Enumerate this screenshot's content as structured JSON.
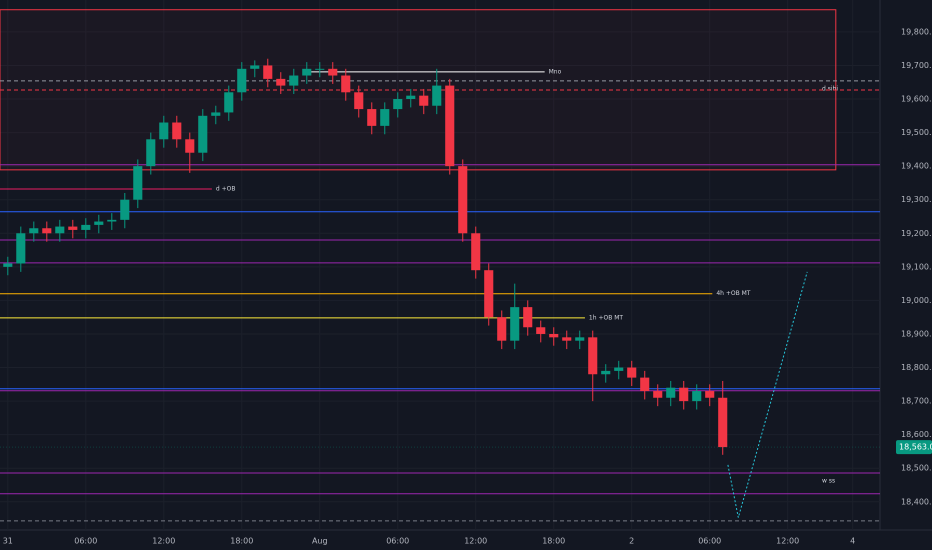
{
  "chart_data": {
    "type": "candlestick",
    "x": [
      0,
      1,
      2,
      3,
      4,
      5,
      6,
      7,
      8,
      9,
      10,
      11,
      12,
      13,
      14,
      15,
      16,
      17,
      18,
      19,
      20,
      21,
      22,
      23,
      24,
      25,
      26,
      27,
      28,
      29,
      30,
      31,
      32,
      33,
      34,
      35,
      36,
      37,
      38,
      39,
      40,
      41,
      42,
      43,
      44,
      45,
      46,
      47,
      48,
      49,
      50,
      51,
      52,
      53,
      54,
      55
    ],
    "open": [
      19100,
      19110,
      19200,
      19215,
      19200,
      19220,
      19210,
      19225,
      19235,
      19240,
      19300,
      19400,
      19480,
      19530,
      19480,
      19440,
      19550,
      19560,
      19620,
      19690,
      19700,
      19660,
      19640,
      19670,
      19690,
      19690,
      19670,
      19620,
      19570,
      19520,
      19570,
      19600,
      19610,
      19580,
      19640,
      19400,
      19200,
      19090,
      18950,
      18880,
      18980,
      18920,
      18900,
      18890,
      18880,
      18890,
      18780,
      18790,
      18800,
      18770,
      18730,
      18710,
      18740,
      18700,
      18730,
      18710
    ],
    "high": [
      19130,
      19220,
      19235,
      19235,
      19240,
      19240,
      19245,
      19255,
      19260,
      19320,
      19420,
      19500,
      19550,
      19550,
      19500,
      19570,
      19580,
      19640,
      19710,
      19715,
      19720,
      19680,
      19690,
      19710,
      19710,
      19710,
      19690,
      19640,
      19590,
      19590,
      19620,
      19630,
      19630,
      19690,
      19660,
      19420,
      19220,
      19110,
      18970,
      19050,
      19000,
      18940,
      18920,
      18910,
      18910,
      18910,
      18810,
      18820,
      18820,
      18790,
      18750,
      18760,
      18760,
      18750,
      18750,
      18760
    ],
    "low": [
      19075,
      19085,
      19175,
      19175,
      19175,
      19185,
      19185,
      19200,
      19210,
      19215,
      19275,
      19375,
      19455,
      19455,
      19380,
      19415,
      19525,
      19535,
      19595,
      19665,
      19635,
      19615,
      19615,
      19645,
      19665,
      19645,
      19595,
      19545,
      19495,
      19495,
      19545,
      19575,
      19555,
      19555,
      19375,
      19175,
      19065,
      18925,
      18855,
      18855,
      18895,
      18875,
      18865,
      18855,
      18855,
      18700,
      18755,
      18765,
      18745,
      18705,
      18685,
      18685,
      18675,
      18675,
      18685,
      18540
    ],
    "close": [
      19110,
      19200,
      19215,
      19200,
      19220,
      19210,
      19225,
      19235,
      19240,
      19300,
      19400,
      19480,
      19530,
      19480,
      19440,
      19550,
      19560,
      19620,
      19690,
      19700,
      19660,
      19640,
      19670,
      19690,
      19690,
      19670,
      19620,
      19570,
      19520,
      19570,
      19600,
      19610,
      19580,
      19640,
      19400,
      19200,
      19090,
      18950,
      18880,
      18980,
      18920,
      18900,
      18890,
      18880,
      18890,
      18780,
      18790,
      18800,
      18770,
      18730,
      18710,
      18740,
      18700,
      18730,
      18710,
      18563
    ],
    "up_color": "#089981",
    "down_color": "#f23645",
    "xlim": [
      -0.6,
      67.1
    ],
    "ylim": [
      18316,
      19895
    ],
    "xticks": [
      {
        "value": 0,
        "label": "31"
      },
      {
        "value": 6,
        "label": "06:00"
      },
      {
        "value": 12,
        "label": "12:00"
      },
      {
        "value": 18,
        "label": "18:00"
      },
      {
        "value": 24,
        "label": "Aug"
      },
      {
        "value": 30,
        "label": "06:00"
      },
      {
        "value": 36,
        "label": "12:00"
      },
      {
        "value": 42,
        "label": "18:00"
      },
      {
        "value": 48,
        "label": "2"
      },
      {
        "value": 54,
        "label": "06:00"
      },
      {
        "value": 60,
        "label": "12:00"
      },
      {
        "value": 65,
        "label": "4"
      }
    ],
    "yticks": [
      {
        "value": 18400,
        "label": "18,400.00"
      },
      {
        "value": 18500,
        "label": "18,500.00"
      },
      {
        "value": 18600,
        "label": "18,600.00"
      },
      {
        "value": 18700,
        "label": "18,700.00"
      },
      {
        "value": 18800,
        "label": "18,800.00"
      },
      {
        "value": 18900,
        "label": "18,900.00"
      },
      {
        "value": 19000,
        "label": "19,000.00"
      },
      {
        "value": 19100,
        "label": "19,100.00"
      },
      {
        "value": 19200,
        "label": "19,200.00"
      },
      {
        "value": 19300,
        "label": "19,300.00"
      },
      {
        "value": 19400,
        "label": "19,400.00"
      },
      {
        "value": 19500,
        "label": "19,500.00"
      },
      {
        "value": 19600,
        "label": "19,600.00"
      },
      {
        "value": 19700,
        "label": "19,700.00"
      },
      {
        "value": 19800,
        "label": "19,800.00"
      }
    ],
    "grid": true,
    "last_price": {
      "value": 18563,
      "label": "18,563.00"
    },
    "zone": {
      "top": 19866,
      "bottom": 19389,
      "from": -0.6,
      "to": 63.7,
      "color": "#f23645"
    },
    "levels": [
      {
        "price": 19681,
        "from": 23.2,
        "to": 41.3,
        "color": "#ffffff",
        "label": "Mno"
      },
      {
        "price": 19654,
        "from": -0.6,
        "to": 67.1,
        "color": "#9598a1",
        "dashed": true,
        "label": "d sibi"
      },
      {
        "price": 19627,
        "from": -0.6,
        "to": 67.1,
        "color": "#f23645",
        "dashed": true
      },
      {
        "price": 19404,
        "from": -0.6,
        "to": 67.1,
        "color": "#9c27b0"
      },
      {
        "price": 19332,
        "from": -0.6,
        "to": 15.7,
        "color": "#e91e63",
        "label": "d +OB"
      },
      {
        "price": 19264,
        "from": -0.6,
        "to": 67.1,
        "color": "#2962ff"
      },
      {
        "price": 19180,
        "from": -0.6,
        "to": 67.1,
        "color": "#9c27b0"
      },
      {
        "price": 19112,
        "from": -0.6,
        "to": 67.1,
        "color": "#9c27b0"
      },
      {
        "price": 19020,
        "from": -0.6,
        "to": 54.2,
        "color": "#ffb300",
        "label": "4h +OB MT"
      },
      {
        "price": 18948,
        "from": -0.6,
        "to": 44.4,
        "color": "#ffeb3b",
        "label": "1h +OB MT"
      },
      {
        "price": 18737,
        "from": -0.6,
        "to": 67.1,
        "color": "#2962ff"
      },
      {
        "price": 18731,
        "from": -0.6,
        "to": 67.1,
        "color": "#9c27b0"
      },
      {
        "price": 18486,
        "from": -0.6,
        "to": 67.1,
        "color": "#9c27b0",
        "label": "w ss"
      },
      {
        "price": 18424,
        "from": -0.6,
        "to": 67.1,
        "color": "#9c27b0"
      },
      {
        "price": 18343,
        "from": -0.6,
        "to": 67.1,
        "color": "#787b86",
        "dashed": true
      }
    ],
    "projection": {
      "x": [
        55.4,
        56.2,
        61.5
      ],
      "y": [
        18510,
        18353,
        19085
      ],
      "color": "#26c6da"
    }
  }
}
